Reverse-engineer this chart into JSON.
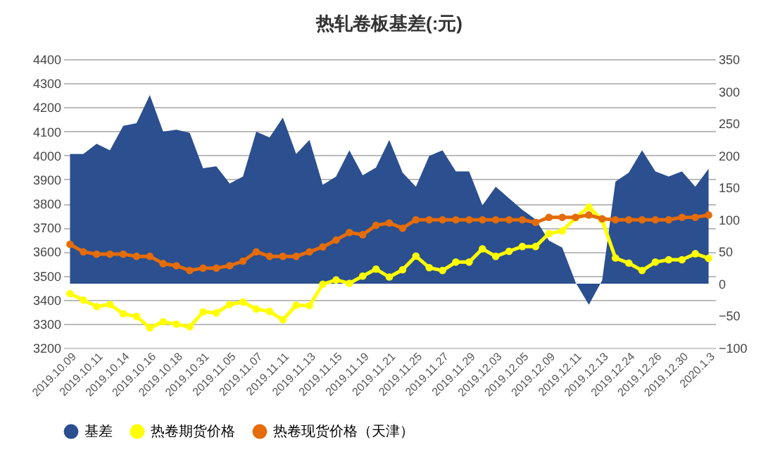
{
  "chart_data": {
    "type": "line",
    "title": "热轧卷板基差(:元)",
    "categories": [
      "2019.10.09",
      null,
      "2019.10.11",
      null,
      "2019.10.14",
      null,
      "2019.10.16",
      null,
      "2019.10.18",
      null,
      "2019.10.31",
      null,
      "2019.11.05",
      null,
      "2019.11.07",
      null,
      "2019.11.11",
      null,
      "2019.11.13",
      null,
      "2019.11.15",
      null,
      "2019.11.19",
      null,
      "2019.11.21",
      null,
      "2019.11.25",
      null,
      "2019.11.27",
      null,
      "2019.11.29",
      null,
      "2019.12.03",
      null,
      "2019.12.05",
      null,
      "2019.12.09",
      null,
      "2019.12.11",
      null,
      "2019.12.13",
      null,
      "2019.12.24",
      null,
      "2019.12.26",
      null,
      "2019.12.30",
      null,
      "2020.1.3"
    ],
    "series": [
      {
        "name": "基差",
        "type": "area",
        "axis": "y2",
        "marker": "none",
        "color": "#2b4f8f",
        "values": [
          202,
          202,
          218,
          208,
          246,
          250,
          294,
          237,
          240,
          235,
          180,
          183,
          156,
          167,
          237,
          228,
          259,
          202,
          224,
          154,
          167,
          208,
          169,
          181,
          224,
          173,
          151,
          199,
          208,
          175,
          175,
          122,
          151,
          133,
          115,
          100,
          67,
          56,
          2,
          -33,
          5,
          159,
          173,
          208,
          175,
          167,
          175,
          151,
          179
        ]
      },
      {
        "name": "热卷期货价格",
        "color": "#ffff00",
        "values": [
          3425,
          3398,
          3371,
          3380,
          3341,
          3330,
          3283,
          3308,
          3298,
          3287,
          3349,
          3345,
          3380,
          3390,
          3361,
          3351,
          3316,
          3377,
          3375,
          3464,
          3482,
          3468,
          3498,
          3527,
          3494,
          3524,
          3581,
          3533,
          3521,
          3556,
          3556,
          3611,
          3580,
          3601,
          3621,
          3621,
          3675,
          3686,
          3740,
          3785,
          3731,
          3573,
          3552,
          3521,
          3556,
          3566,
          3566,
          3591,
          3572
        ]
      },
      {
        "name": "热卷现货价格（天津）",
        "color": "#e46c0a",
        "values": [
          3630,
          3599,
          3589,
          3589,
          3589,
          3580,
          3580,
          3550,
          3541,
          3521,
          3531,
          3531,
          3541,
          3560,
          3599,
          3580,
          3580,
          3580,
          3599,
          3619,
          3648,
          3679,
          3670,
          3709,
          3719,
          3697,
          3732,
          3732,
          3732,
          3732,
          3732,
          3732,
          3732,
          3732,
          3732,
          3721,
          3742,
          3742,
          3742,
          3752,
          3736,
          3732,
          3732,
          3732,
          3732,
          3732,
          3742,
          3742,
          3752
        ]
      }
    ],
    "ylim": [
      3200,
      4400
    ],
    "yticks": [
      3200,
      3300,
      3400,
      3500,
      3600,
      3700,
      3800,
      3900,
      4000,
      4100,
      4200,
      4300,
      4400
    ],
    "y2lim": [
      -100,
      350
    ],
    "y2ticks": [
      -100,
      -50,
      0,
      50,
      100,
      150,
      200,
      250,
      300,
      350
    ],
    "grid": "y",
    "legend": "bottom",
    "marker": "circle",
    "line_style": "solid"
  }
}
